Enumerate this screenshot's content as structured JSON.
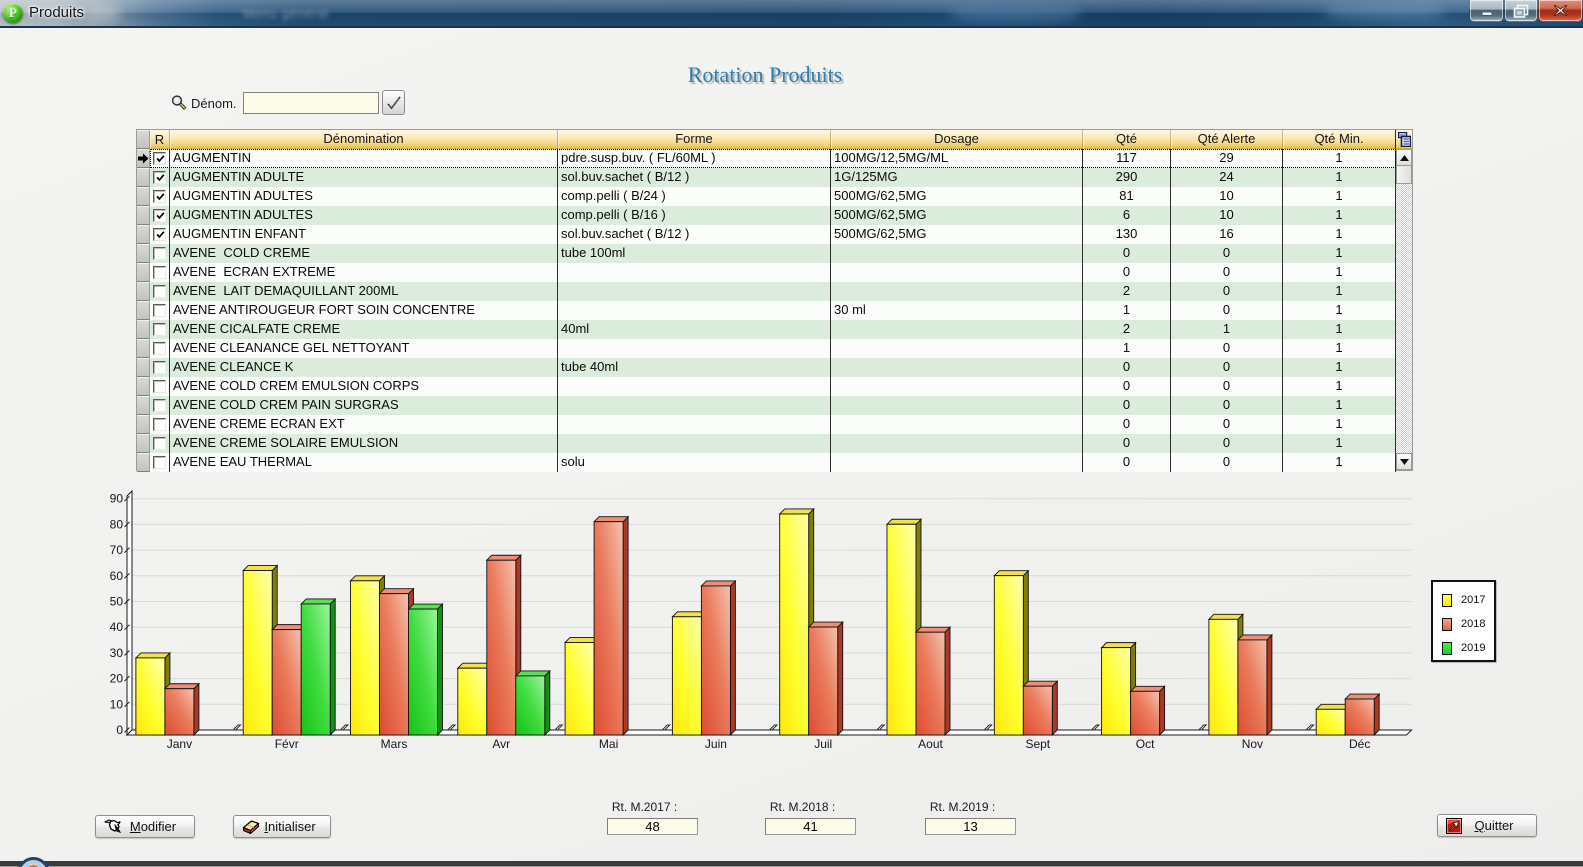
{
  "window": {
    "title": "Produits",
    "background_window_title": "Menu général",
    "caption_buttons": {
      "minimize": "minimize",
      "restore": "restore",
      "close": "close"
    }
  },
  "heading": "Rotation Produits",
  "search": {
    "label": "Dénom.",
    "value": "",
    "placeholder": ""
  },
  "table": {
    "columns": [
      "R",
      "Dénomination",
      "Forme",
      "Dosage",
      "Qté",
      "Qté Alerte",
      "Qté Min."
    ],
    "rows": [
      {
        "checked": true,
        "selected": true,
        "denomination": "AUGMENTIN",
        "forme": "pdre.susp.buv. ( FL/60ML )",
        "dosage": "100MG/12,5MG/ML",
        "qte": "117",
        "qte_alerte": "29",
        "qte_min": "1"
      },
      {
        "checked": true,
        "selected": false,
        "denomination": "AUGMENTIN ADULTE",
        "forme": "sol.buv.sachet ( B/12 )",
        "dosage": "1G/125MG",
        "qte": "290",
        "qte_alerte": "24",
        "qte_min": "1"
      },
      {
        "checked": true,
        "selected": false,
        "denomination": "AUGMENTIN ADULTES",
        "forme": "comp.pelli ( B/24 )",
        "dosage": "500MG/62,5MG",
        "qte": "81",
        "qte_alerte": "10",
        "qte_min": "1"
      },
      {
        "checked": true,
        "selected": false,
        "denomination": "AUGMENTIN ADULTES",
        "forme": "comp.pelli ( B/16 )",
        "dosage": "500MG/62,5MG",
        "qte": "6",
        "qte_alerte": "10",
        "qte_min": "1"
      },
      {
        "checked": true,
        "selected": false,
        "denomination": "AUGMENTIN ENFANT",
        "forme": "sol.buv.sachet ( B/12 )",
        "dosage": "500MG/62,5MG",
        "qte": "130",
        "qte_alerte": "16",
        "qte_min": "1"
      },
      {
        "checked": false,
        "selected": false,
        "denomination": "AVENE  COLD CREME",
        "forme": "tube 100ml",
        "dosage": "",
        "qte": "0",
        "qte_alerte": "0",
        "qte_min": "1"
      },
      {
        "checked": false,
        "selected": false,
        "denomination": "AVENE  ECRAN EXTREME",
        "forme": "",
        "dosage": "",
        "qte": "0",
        "qte_alerte": "0",
        "qte_min": "1"
      },
      {
        "checked": false,
        "selected": false,
        "denomination": "AVENE  LAIT DEMAQUILLANT 200ML",
        "forme": "",
        "dosage": "",
        "qte": "2",
        "qte_alerte": "0",
        "qte_min": "1"
      },
      {
        "checked": false,
        "selected": false,
        "denomination": "AVENE ANTIROUGEUR FORT SOIN CONCENTRE",
        "forme": "",
        "dosage": "30 ml",
        "qte": "1",
        "qte_alerte": "0",
        "qte_min": "1"
      },
      {
        "checked": false,
        "selected": false,
        "denomination": "AVENE CICALFATE CREME",
        "forme": "40ml",
        "dosage": "",
        "qte": "2",
        "qte_alerte": "1",
        "qte_min": "1"
      },
      {
        "checked": false,
        "selected": false,
        "denomination": "AVENE CLEANANCE GEL NETTOYANT",
        "forme": "",
        "dosage": "",
        "qte": "1",
        "qte_alerte": "0",
        "qte_min": "1"
      },
      {
        "checked": false,
        "selected": false,
        "denomination": "AVENE CLEANCE K",
        "forme": "tube 40ml",
        "dosage": "",
        "qte": "0",
        "qte_alerte": "0",
        "qte_min": "1"
      },
      {
        "checked": false,
        "selected": false,
        "denomination": "AVENE COLD CREM EMULSION CORPS",
        "forme": "",
        "dosage": "",
        "qte": "0",
        "qte_alerte": "0",
        "qte_min": "1"
      },
      {
        "checked": false,
        "selected": false,
        "denomination": "AVENE COLD CREM PAIN SURGRAS",
        "forme": "",
        "dosage": "",
        "qte": "0",
        "qte_alerte": "0",
        "qte_min": "1"
      },
      {
        "checked": false,
        "selected": false,
        "denomination": "AVENE CREME ECRAN EXT",
        "forme": "",
        "dosage": "",
        "qte": "0",
        "qte_alerte": "0",
        "qte_min": "1"
      },
      {
        "checked": false,
        "selected": false,
        "denomination": "AVENE CREME SOLAIRE EMULSION",
        "forme": "",
        "dosage": "",
        "qte": "0",
        "qte_alerte": "0",
        "qte_min": "1"
      },
      {
        "checked": false,
        "selected": false,
        "denomination": "AVENE EAU THERMAL",
        "forme": "solu",
        "dosage": "",
        "qte": "0",
        "qte_alerte": "0",
        "qte_min": "1"
      }
    ]
  },
  "chart_data": {
    "type": "bar",
    "title": "",
    "categories": [
      "Janv",
      "Févr",
      "Mars",
      "Avr",
      "Mai",
      "Juin",
      "Juil",
      "Aout",
      "Sept",
      "Oct",
      "Nov",
      "Déc"
    ],
    "series": [
      {
        "name": "2017",
        "color": "#ffff00",
        "values": [
          30,
          64,
          60,
          26,
          36,
          46,
          86,
          82,
          62,
          34,
          45,
          10
        ]
      },
      {
        "name": "2018",
        "color": "#ee7765",
        "values": [
          18,
          41,
          55,
          68,
          83,
          58,
          42,
          40,
          19,
          17,
          37,
          14
        ]
      },
      {
        "name": "2019",
        "color": "#2fd32f",
        "values": [
          null,
          51,
          49,
          23,
          null,
          null,
          null,
          null,
          null,
          null,
          null,
          null
        ]
      }
    ],
    "xlabel": "",
    "ylabel": "",
    "ylim": [
      0,
      90
    ],
    "ytick_step": 10,
    "grid": true,
    "legend_position": "right",
    "style": "3d-bars"
  },
  "footer": {
    "buttons": [
      {
        "id": "modifier",
        "label": "Modifier",
        "mnemonic_index": 0,
        "icon": "hand-pen-icon"
      },
      {
        "id": "initialiser",
        "label": "Initialiser",
        "mnemonic_index": 0,
        "icon": "eraser-icon"
      },
      {
        "id": "quitter",
        "label": "Quitter",
        "mnemonic_index": 0,
        "icon": "exit-icon"
      }
    ],
    "stats": [
      {
        "id": "2017",
        "label": "Rt. M.2017 :",
        "value": "48"
      },
      {
        "id": "2018",
        "label": "Rt. M.2018 :",
        "value": "41"
      },
      {
        "id": "2019",
        "label": "Rt. M.2019 :",
        "value": "13"
      }
    ]
  }
}
